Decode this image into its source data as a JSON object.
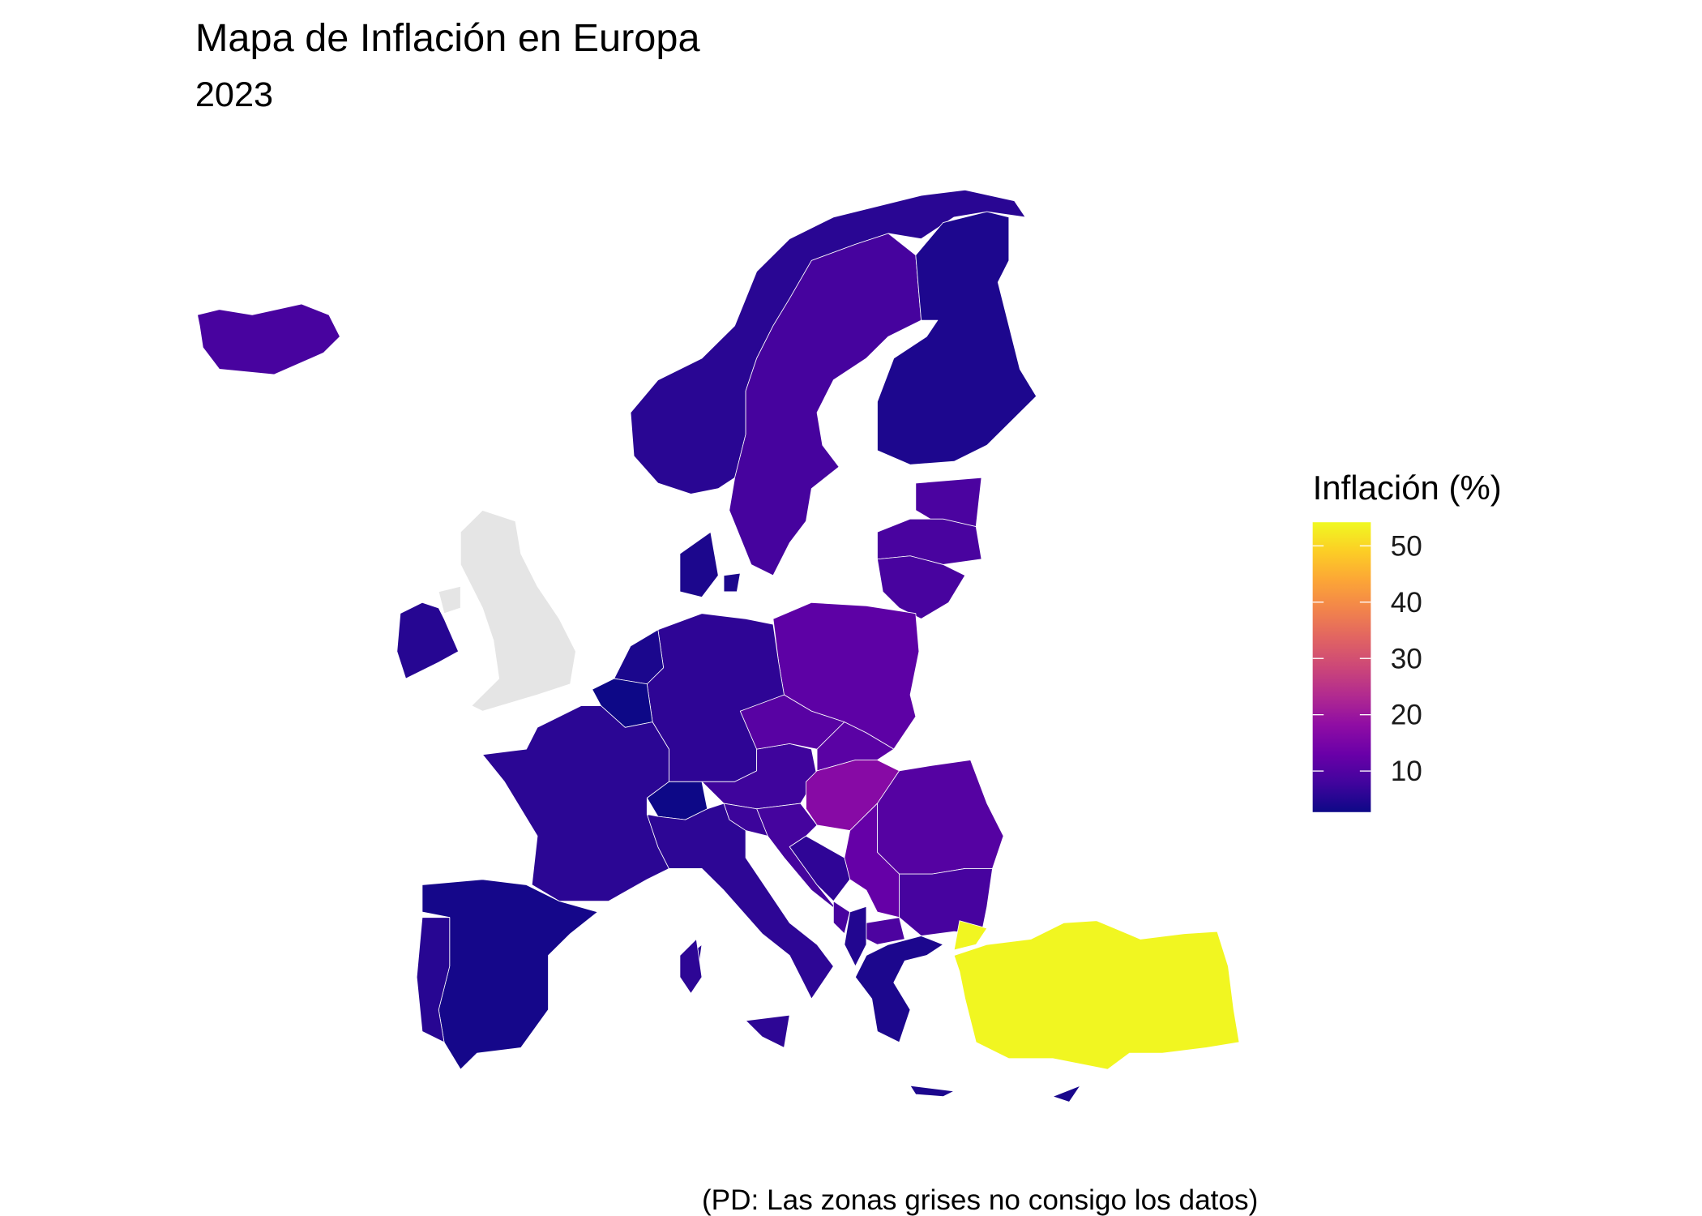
{
  "title": "Mapa de Inflación en Europa",
  "subtitle": "2023",
  "caption": "(PD: Las zonas grises no consigo los datos)",
  "legend": {
    "title": "Inflación (%)",
    "lim": [
      2.7,
      54.2
    ],
    "ticks": [
      10,
      20,
      30,
      40,
      50
    ]
  },
  "colorscale": [
    "#0d0887",
    "#41049d",
    "#6a00a8",
    "#8f0da4",
    "#b12a90",
    "#cc4778",
    "#e16462",
    "#f2844b",
    "#fca636",
    "#fcce25",
    "#f0f921"
  ],
  "missing_color": "#e5e5e5",
  "regions": [
    {
      "value": 8.7
    },
    {
      "value": 5.5
    },
    {
      "value": 8.5
    },
    {
      "value": 4.3
    },
    {
      "value": 9.1
    },
    {
      "value": 8.9
    },
    {
      "value": 8.7
    },
    {
      "value": 11.4
    },
    {
      "value": 6.0
    },
    {
      "value": 4.2
    },
    {
      "value": 4.1
    },
    {
      "value": 2.3
    },
    {
      "value": 5.7
    },
    {
      "value": 2.1
    },
    {
      "value": 7.7
    },
    {
      "value": 10.7
    },
    {
      "value": 11.0
    },
    {
      "value": 17.0
    },
    {
      "value": 10.4
    },
    {
      "value": 8.6
    },
    {
      "value": 12.4
    },
    {
      "value": 8.4
    },
    {
      "value": 7.4
    },
    {
      "value": 6.1
    },
    {
      "value": 5.9
    },
    {
      "value": 4.2
    },
    {
      "value": 4.8
    },
    {
      "value": 9.4
    },
    {
      "value": 8.6
    },
    {
      "value": 3.5
    },
    {
      "value": 5.3
    },
    {
      "value": 5.2
    },
    {
      "value": 3.9
    },
    {
      "value": 53.9
    },
    {
      "value": null
    }
  ]
}
